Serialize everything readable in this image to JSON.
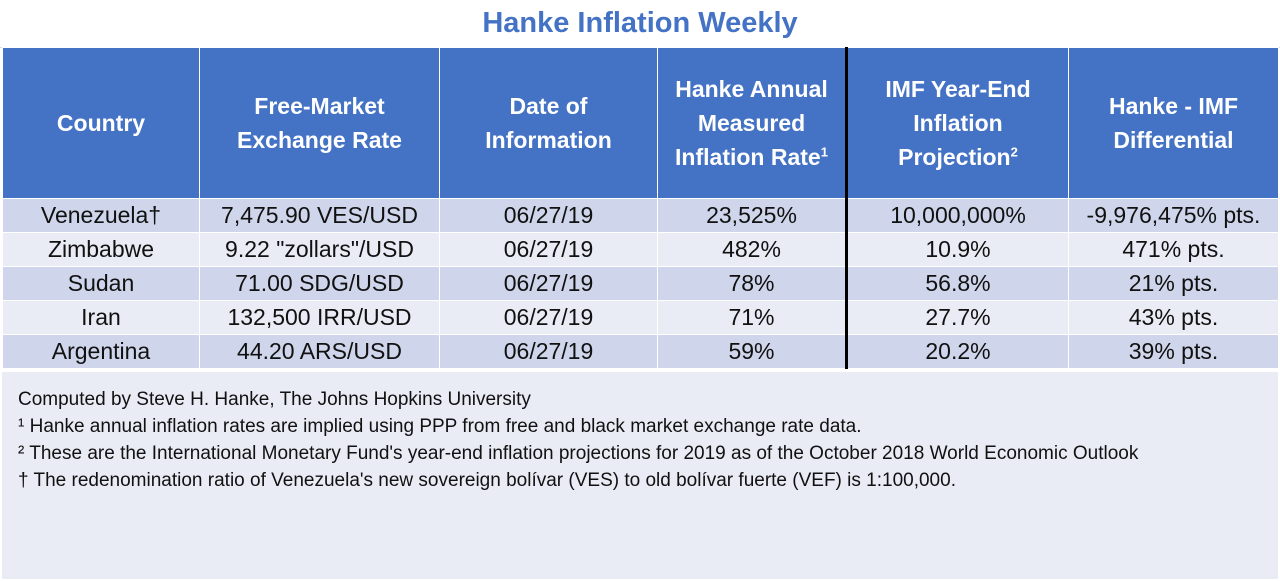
{
  "title": "Hanke Inflation Weekly",
  "headers": {
    "country": "Country",
    "rate_line1": "Free-Market",
    "rate_line2": "Exchange Rate",
    "date_line1": "Date of",
    "date_line2": "Information",
    "hanke_line1": "Hanke Annual",
    "hanke_line2": "Measured",
    "hanke_line3": "Inflation Rate",
    "hanke_sup": "1",
    "imf_line1": "IMF Year-End",
    "imf_line2": "Inflation",
    "imf_line3": "Projection",
    "imf_sup": "2",
    "diff_line1": "Hanke - IMF",
    "diff_line2": "Differential"
  },
  "rows": [
    {
      "country": "Venezuela†",
      "rate": "7,475.90 VES/USD",
      "date": "06/27/19",
      "hanke": "23,525%",
      "imf": "10,000,000%",
      "diff": "-9,976,475% pts."
    },
    {
      "country": "Zimbabwe",
      "rate": "9.22 \"zollars\"/USD",
      "date": "06/27/19",
      "hanke": "482%",
      "imf": "10.9%",
      "diff": "471% pts."
    },
    {
      "country": "Sudan",
      "rate": "71.00 SDG/USD",
      "date": "06/27/19",
      "hanke": "78%",
      "imf": "56.8%",
      "diff": "21% pts."
    },
    {
      "country": "Iran",
      "rate": "132,500 IRR/USD",
      "date": "06/27/19",
      "hanke": "71%",
      "imf": "27.7%",
      "diff": "43% pts."
    },
    {
      "country": "Argentina",
      "rate": "44.20 ARS/USD",
      "date": "06/27/19",
      "hanke": "59%",
      "imf": "20.2%",
      "diff": "39% pts."
    }
  ],
  "notes": [
    "Computed by Steve H. Hanke, The Johns Hopkins University",
    "¹ Hanke annual inflation rates are implied using PPP from free and black market exchange rate data.",
    "² These are the International Monetary Fund's year-end inflation projections for 2019 as of the October 2018 World Economic Outlook",
    "† The redenomination ratio of Venezuela's new sovereign bolívar (VES) to old bolívar fuerte (VEF) is 1:100,000."
  ],
  "colors": {
    "header_bg": "#4472C4",
    "title_text": "#4472C4",
    "row_dark": "#cfd5ea",
    "row_light": "#e9ebf5"
  }
}
